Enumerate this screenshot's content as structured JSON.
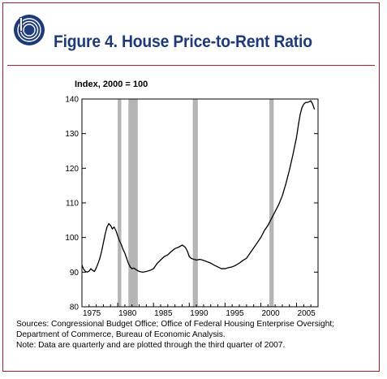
{
  "header": {
    "title": "Figure 4. House Price-to-Rent Ratio",
    "brand_color": "#1f3a7a",
    "accent_color": "#b01c2e",
    "logo_icon": "cbo-logo-icon"
  },
  "footer": {
    "sources_line1": "Sources: Congressional Budget Office; Office of Federal Housing Enterprise Oversight;",
    "sources_line2": "Department of Commerce, Bureau of Economic Analysis.",
    "note": "Note: Data are quarterly and are plotted through the third quarter of 2007."
  },
  "chart_data": {
    "type": "line",
    "title": "",
    "unit_label": "Index, 2000 = 100",
    "xlabel": "",
    "ylabel": "",
    "xlim": [
      1975,
      2008
    ],
    "ylim": [
      80,
      140
    ],
    "x_ticks": [
      1975,
      1980,
      1985,
      1990,
      1995,
      2000,
      2005
    ],
    "y_ticks": [
      80,
      90,
      100,
      110,
      120,
      130,
      140
    ],
    "x_tick_labels": [
      "1975",
      "1980",
      "1985",
      "1990",
      "1995",
      "2000",
      "2005"
    ],
    "y_tick_labels": [
      "80",
      "90",
      "100",
      "110",
      "120",
      "130",
      "140"
    ],
    "line_color": "#000000",
    "shade_color": "#b5b5b5",
    "recessions": [
      {
        "start": 1980.0,
        "end": 1980.5
      },
      {
        "start": 1981.5,
        "end": 1982.8
      },
      {
        "start": 1990.5,
        "end": 1991.2
      },
      {
        "start": 2001.2,
        "end": 2001.8
      }
    ],
    "series": [
      {
        "x": [
          1975.0,
          1975.25,
          1975.5,
          1975.75,
          1976.0,
          1976.25,
          1976.5,
          1976.75,
          1977.0,
          1977.25,
          1977.5,
          1977.75,
          1978.0,
          1978.25,
          1978.5,
          1978.75,
          1979.0,
          1979.25,
          1979.5,
          1979.75,
          1980.0,
          1980.25,
          1980.5,
          1980.75,
          1981.0,
          1981.25,
          1981.5,
          1981.75,
          1982.0,
          1982.25,
          1982.5,
          1982.75,
          1983.0,
          1983.5,
          1984.0,
          1984.5,
          1985.0,
          1985.5,
          1986.0,
          1986.5,
          1987.0,
          1987.5,
          1988.0,
          1988.5,
          1989.0,
          1989.25,
          1989.5,
          1989.75,
          1990.0,
          1990.25,
          1990.5,
          1991.0,
          1991.5,
          1992.0,
          1992.5,
          1993.0,
          1993.5,
          1994.0,
          1994.5,
          1995.0,
          1995.5,
          1996.0,
          1996.5,
          1997.0,
          1997.5,
          1998.0,
          1998.5,
          1999.0,
          1999.5,
          2000.0,
          2000.5,
          2001.0,
          2001.5,
          2002.0,
          2002.5,
          2003.0,
          2003.5,
          2004.0,
          2004.5,
          2005.0,
          2005.25,
          2005.5,
          2005.75,
          2006.0,
          2006.25,
          2006.5,
          2006.75,
          2007.0,
          2007.25,
          2007.5
        ],
        "values": [
          92.0,
          90.8,
          90.2,
          90.0,
          90.3,
          91.0,
          90.5,
          90.2,
          91.2,
          92.5,
          94.0,
          96.0,
          98.5,
          101.0,
          103.0,
          104.0,
          103.5,
          102.5,
          103.0,
          102.0,
          100.5,
          99.0,
          98.0,
          96.5,
          95.5,
          94.0,
          92.5,
          91.5,
          91.0,
          91.2,
          90.8,
          90.5,
          90.2,
          90.0,
          90.2,
          90.5,
          91.0,
          92.5,
          93.5,
          94.5,
          95.0,
          96.0,
          96.8,
          97.2,
          97.8,
          97.5,
          97.0,
          96.0,
          94.5,
          94.0,
          93.8,
          93.5,
          93.7,
          93.4,
          93.0,
          92.6,
          92.0,
          91.5,
          91.0,
          91.0,
          91.3,
          91.5,
          92.0,
          92.6,
          93.4,
          94.0,
          95.5,
          97.0,
          98.5,
          100.0,
          102.0,
          103.5,
          105.5,
          107.5,
          109.5,
          112.0,
          115.5,
          119.5,
          124.0,
          129.0,
          132.5,
          135.5,
          137.5,
          138.5,
          139.0,
          139.0,
          139.2,
          139.5,
          138.5,
          137.0
        ]
      }
    ]
  }
}
